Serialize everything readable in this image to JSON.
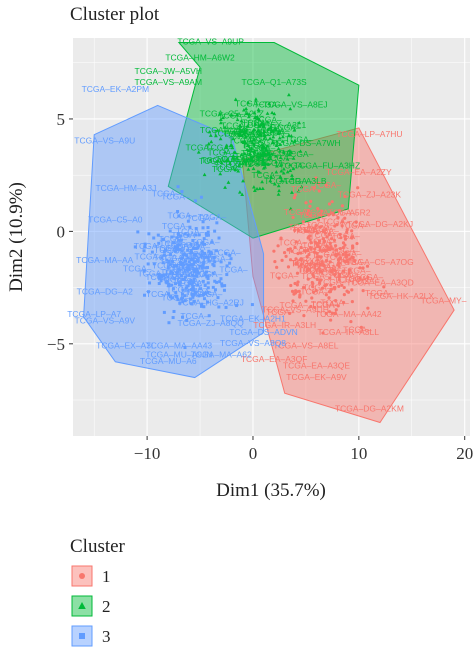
{
  "chart_data": {
    "type": "scatter",
    "title": "Cluster plot",
    "xlabel": "Dim1 (35.7%)",
    "ylabel": "Dim2 (10.9%)",
    "xlim": [
      -17,
      20.5
    ],
    "ylim": [
      -9.1,
      8.6
    ],
    "x_ticks": [
      -10,
      0,
      10,
      20
    ],
    "x_tick_labels": [
      "−10",
      "0",
      "10",
      "20"
    ],
    "y_ticks": [
      -5,
      0,
      5
    ],
    "y_tick_labels": [
      "−5",
      "0",
      "5"
    ],
    "grid": true,
    "background": "#ebebeb",
    "legend": {
      "title": "Cluster",
      "position": "bottom-left",
      "entries": [
        {
          "label": "1",
          "color": "#f8766d",
          "shape": "circle"
        },
        {
          "label": "2",
          "color": "#00ba38",
          "shape": "triangle"
        },
        {
          "label": "3",
          "color": "#619cff",
          "shape": "square"
        }
      ]
    },
    "clusters": [
      {
        "name": "1",
        "color": "#f8766d",
        "hull": [
          [
            -1,
            3.2
          ],
          [
            10,
            4.6
          ],
          [
            19,
            -3.5
          ],
          [
            12,
            -8.5
          ],
          [
            3,
            -7.2
          ],
          [
            0,
            -2
          ]
        ],
        "labeled_points": [
          {
            "x": 11,
            "y": 4.2,
            "label": "TCGA–LP–A7HU"
          },
          {
            "x": 11,
            "y": 1.5,
            "label": "TCGA–ZJ–A23K"
          },
          {
            "x": 12,
            "y": 0.2,
            "label": "TCGA–DG–A2KJ"
          },
          {
            "x": 12,
            "y": -1.5,
            "label": "TCGA–C5–A7OG"
          },
          {
            "x": 12,
            "y": -2.4,
            "label": "TCGA–EA–A3QD"
          },
          {
            "x": 14,
            "y": -3.0,
            "label": "TCGA–HK–A2LX"
          },
          {
            "x": 18,
            "y": -3.2,
            "label": "TCGA–MY–"
          },
          {
            "x": 9,
            "y": -3.8,
            "label": "TCGA–MA–AA42"
          },
          {
            "x": 9,
            "y": -4.6,
            "label": "TCGA–IR–A3LL"
          },
          {
            "x": 5,
            "y": -5.2,
            "label": "TCGA–VS–A8EL"
          },
          {
            "x": 6,
            "y": -6.1,
            "label": "TCGA–EA–A3QE"
          },
          {
            "x": 6,
            "y": -6.6,
            "label": "TCGA–EK–A9V"
          },
          {
            "x": 11,
            "y": -8.0,
            "label": "TCGA–DG–A2KM"
          },
          {
            "x": 4,
            "y": -3.6,
            "label": "TCGA–VS–A9UH"
          },
          {
            "x": 3,
            "y": -4.3,
            "label": "TCGA–IR–A3LH"
          },
          {
            "x": 2,
            "y": -5.8,
            "label": "TCGA–EA–A3QF"
          },
          {
            "x": 10,
            "y": 2.5,
            "label": "TCGA–EA–A2ZY"
          },
          {
            "x": 8,
            "y": 0.7,
            "label": "TCGA–Q1–A5R2"
          }
        ]
      },
      {
        "name": "2",
        "color": "#00ba38",
        "hull": [
          [
            -7,
            8.4
          ],
          [
            2,
            8.4
          ],
          [
            10,
            6.5
          ],
          [
            9,
            1
          ],
          [
            0,
            -0.3
          ],
          [
            -8,
            2.0
          ],
          [
            -5,
            7.3
          ]
        ],
        "labeled_points": [
          {
            "x": -4,
            "y": 8.3,
            "label": "TCGA–VS–A9UP"
          },
          {
            "x": -5,
            "y": 7.6,
            "label": "TCGA–HM–A6W2"
          },
          {
            "x": -8,
            "y": 7.0,
            "label": "TCGA–JW–A5VH"
          },
          {
            "x": -8,
            "y": 6.5,
            "label": "TCGA–VS–A9AM"
          },
          {
            "x": 2,
            "y": 6.5,
            "label": "TCGA–Q1–A73S"
          },
          {
            "x": 4,
            "y": 5.5,
            "label": "TCGA–VS–A8EJ"
          },
          {
            "x": -2,
            "y": 5.1,
            "label": "TCGA–C5–A2LZ"
          },
          {
            "x": 2,
            "y": 4.6,
            "label": "TCGA–EX–A3L1"
          },
          {
            "x": 5,
            "y": 3.8,
            "label": "TCGA–DS–A7WH"
          },
          {
            "x": 7,
            "y": 2.8,
            "label": "TCGA–FU–A3HZ"
          },
          {
            "x": 4,
            "y": 2.1,
            "label": "TCGA–IR–A3LB"
          },
          {
            "x": -2,
            "y": 3.0,
            "label": "TCGA–VS–A9U5"
          }
        ]
      },
      {
        "name": "3",
        "color": "#619cff",
        "hull": [
          [
            -9,
            5.6
          ],
          [
            -2,
            4.2
          ],
          [
            1,
            -1
          ],
          [
            1,
            -4.5
          ],
          [
            -5.5,
            -6.5
          ],
          [
            -13,
            -5.8
          ],
          [
            -16,
            -3.8
          ],
          [
            -15,
            4.3
          ]
        ],
        "labeled_points": [
          {
            "x": -13,
            "y": 6.2,
            "label": "TCGA–EK–A2PM"
          },
          {
            "x": -14,
            "y": 3.9,
            "label": "TCGA–VS–A9U"
          },
          {
            "x": -12,
            "y": 1.8,
            "label": "TCGA–HM–A3J"
          },
          {
            "x": -13,
            "y": 0.4,
            "label": "TCGA–C5–A0"
          },
          {
            "x": -14,
            "y": -1.4,
            "label": "TCGA–MA–AA"
          },
          {
            "x": -14,
            "y": -2.8,
            "label": "TCGA–DG–A2"
          },
          {
            "x": -15,
            "y": -3.8,
            "label": "TCGA–LP–A7"
          },
          {
            "x": -14,
            "y": -4.1,
            "label": "TCGA–VS–A9V"
          },
          {
            "x": -12,
            "y": -5.2,
            "label": "TCGA–EX–A3L"
          },
          {
            "x": -7,
            "y": -5.2,
            "label": "TCGA–MA–AA43"
          },
          {
            "x": -7,
            "y": -5.6,
            "label": "TCGA–MU–A9JN"
          },
          {
            "x": -8,
            "y": -5.9,
            "label": "TCGA–MU–A6"
          },
          {
            "x": -3,
            "y": -5.6,
            "label": "TCGA–MA–A62"
          },
          {
            "x": -4,
            "y": -3.3,
            "label": "TCGA–HG–A2RJ"
          },
          {
            "x": -4,
            "y": -4.2,
            "label": "TCGA–ZJ–A8QQ"
          },
          {
            "x": 0,
            "y": -5.1,
            "label": "TCGA–VS–A8Q8"
          },
          {
            "x": 1,
            "y": -4.6,
            "label": "TCGA–DS–ADVN"
          },
          {
            "x": 0,
            "y": -4.0,
            "label": "TCGA–EK–A2H1"
          },
          {
            "x": -8,
            "y": -2.0,
            "label": "TCGA–EA–A3Q"
          }
        ]
      }
    ]
  }
}
